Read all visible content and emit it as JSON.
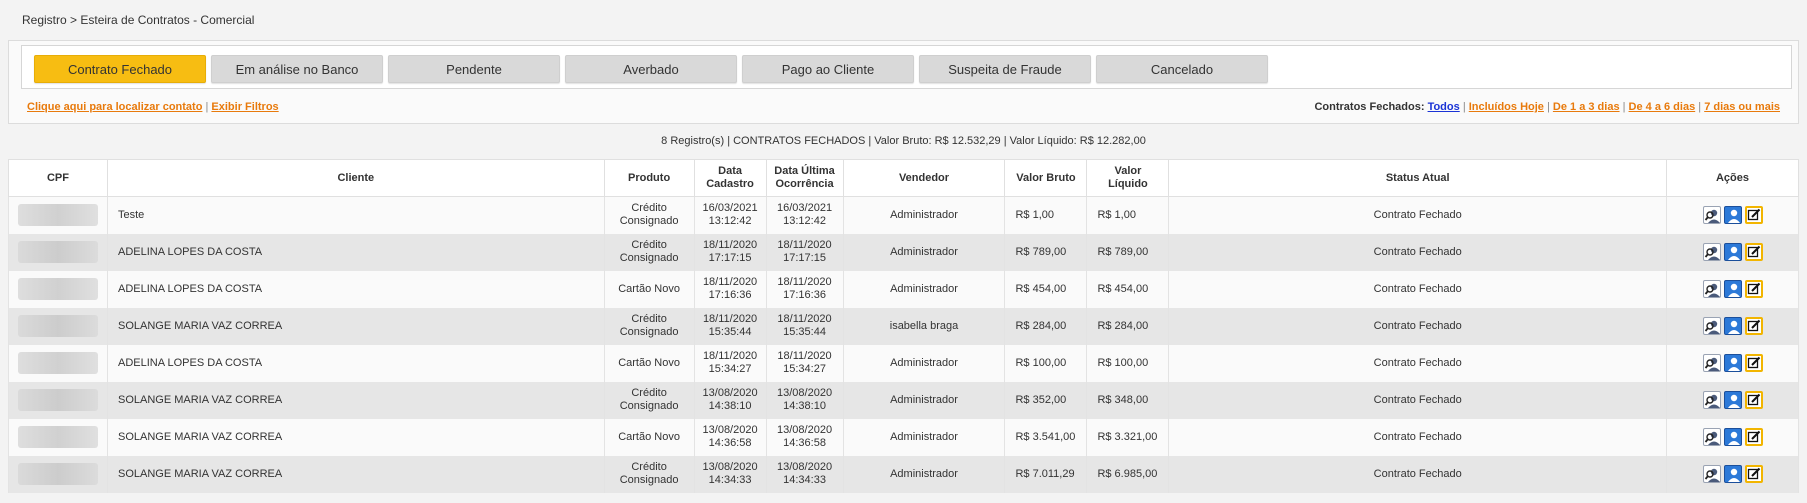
{
  "breadcrumb": "Registro > Esteira de Contratos - Comercial",
  "tabs": [
    {
      "label": "Contrato Fechado",
      "active": true
    },
    {
      "label": "Em análise no Banco"
    },
    {
      "label": "Pendente"
    },
    {
      "label": "Averbado"
    },
    {
      "label": "Pago ao Cliente"
    },
    {
      "label": "Suspeita de Fraude"
    },
    {
      "label": "Cancelado"
    }
  ],
  "links": {
    "find_contact": "Clique aqui para localizar contato",
    "separator": "|",
    "show_filters": "Exibir Filtros",
    "closed_label": "Contratos Fechados:",
    "all": "Todos",
    "included_today": "Incluídos Hoje",
    "d1_3": "De 1 a 3 dias",
    "d4_6": "De 4 a 6 dias",
    "d7plus": "7 dias ou mais"
  },
  "summary": "8 Registro(s) | CONTRATOS FECHADOS | Valor Bruto: R$ 12.532,29 | Valor Líquido: R$ 12.282,00",
  "table": {
    "headers": {
      "cpf": "CPF",
      "cliente": "Cliente",
      "produto": "Produto",
      "data_cad_1": "Data",
      "data_cad_2": "Cadastro",
      "data_ult_1": "Data Última",
      "data_ult_2": "Ocorrência",
      "vendedor": "Vendedor",
      "bruto": "Valor Bruto",
      "liq_1": "Valor",
      "liq_2": "Líquido",
      "status": "Status Atual",
      "acoes": "Ações"
    },
    "rows": [
      {
        "cliente": "Teste",
        "produto1": "Crédito",
        "produto2": "Consignado",
        "cad_d": "16/03/2021",
        "cad_t": "13:12:42",
        "ult_d": "16/03/2021",
        "ult_t": "13:12:42",
        "vendedor": "Administrador",
        "bruto": "R$ 1,00",
        "liquido": "R$ 1,00",
        "status": "Contrato Fechado"
      },
      {
        "cliente": "ADELINA LOPES DA COSTA",
        "produto1": "Crédito",
        "produto2": "Consignado",
        "cad_d": "18/11/2020",
        "cad_t": "17:17:15",
        "ult_d": "18/11/2020",
        "ult_t": "17:17:15",
        "vendedor": "Administrador",
        "bruto": "R$ 789,00",
        "liquido": "R$ 789,00",
        "status": "Contrato Fechado"
      },
      {
        "cliente": "ADELINA LOPES DA COSTA",
        "produto1": "Cartão Novo",
        "produto2": "",
        "cad_d": "18/11/2020",
        "cad_t": "17:16:36",
        "ult_d": "18/11/2020",
        "ult_t": "17:16:36",
        "vendedor": "Administrador",
        "bruto": "R$ 454,00",
        "liquido": "R$ 454,00",
        "status": "Contrato Fechado"
      },
      {
        "cliente": "SOLANGE MARIA VAZ CORREA",
        "produto1": "Crédito",
        "produto2": "Consignado",
        "cad_d": "18/11/2020",
        "cad_t": "15:35:44",
        "ult_d": "18/11/2020",
        "ult_t": "15:35:44",
        "vendedor": "isabella braga",
        "bruto": "R$ 284,00",
        "liquido": "R$ 284,00",
        "status": "Contrato Fechado"
      },
      {
        "cliente": "ADELINA LOPES DA COSTA",
        "produto1": "Cartão Novo",
        "produto2": "",
        "cad_d": "18/11/2020",
        "cad_t": "15:34:27",
        "ult_d": "18/11/2020",
        "ult_t": "15:34:27",
        "vendedor": "Administrador",
        "bruto": "R$ 100,00",
        "liquido": "R$ 100,00",
        "status": "Contrato Fechado"
      },
      {
        "cliente": "SOLANGE MARIA VAZ CORREA",
        "produto1": "Crédito",
        "produto2": "Consignado",
        "cad_d": "13/08/2020",
        "cad_t": "14:38:10",
        "ult_d": "13/08/2020",
        "ult_t": "14:38:10",
        "vendedor": "Administrador",
        "bruto": "R$ 352,00",
        "liquido": "R$ 348,00",
        "status": "Contrato Fechado"
      },
      {
        "cliente": "SOLANGE MARIA VAZ CORREA",
        "produto1": "Cartão Novo",
        "produto2": "",
        "cad_d": "13/08/2020",
        "cad_t": "14:36:58",
        "ult_d": "13/08/2020",
        "ult_t": "14:36:58",
        "vendedor": "Administrador",
        "bruto": "R$ 3.541,00",
        "liquido": "R$ 3.321,00",
        "status": "Contrato Fechado"
      },
      {
        "cliente": "SOLANGE MARIA VAZ CORREA",
        "produto1": "Crédito",
        "produto2": "Consignado",
        "cad_d": "13/08/2020",
        "cad_t": "14:34:33",
        "ult_d": "13/08/2020",
        "ult_t": "14:34:33",
        "vendedor": "Administrador",
        "bruto": "R$ 7.011,29",
        "liquido": "R$ 6.985,00",
        "status": "Contrato Fechado"
      }
    ]
  },
  "colors": {
    "active_tab": "#f7bd12",
    "link_orange": "#e87a0c",
    "link_blue": "#1a33d6"
  },
  "icons": [
    "search-user-icon",
    "user-profile-icon",
    "edit-icon"
  ]
}
